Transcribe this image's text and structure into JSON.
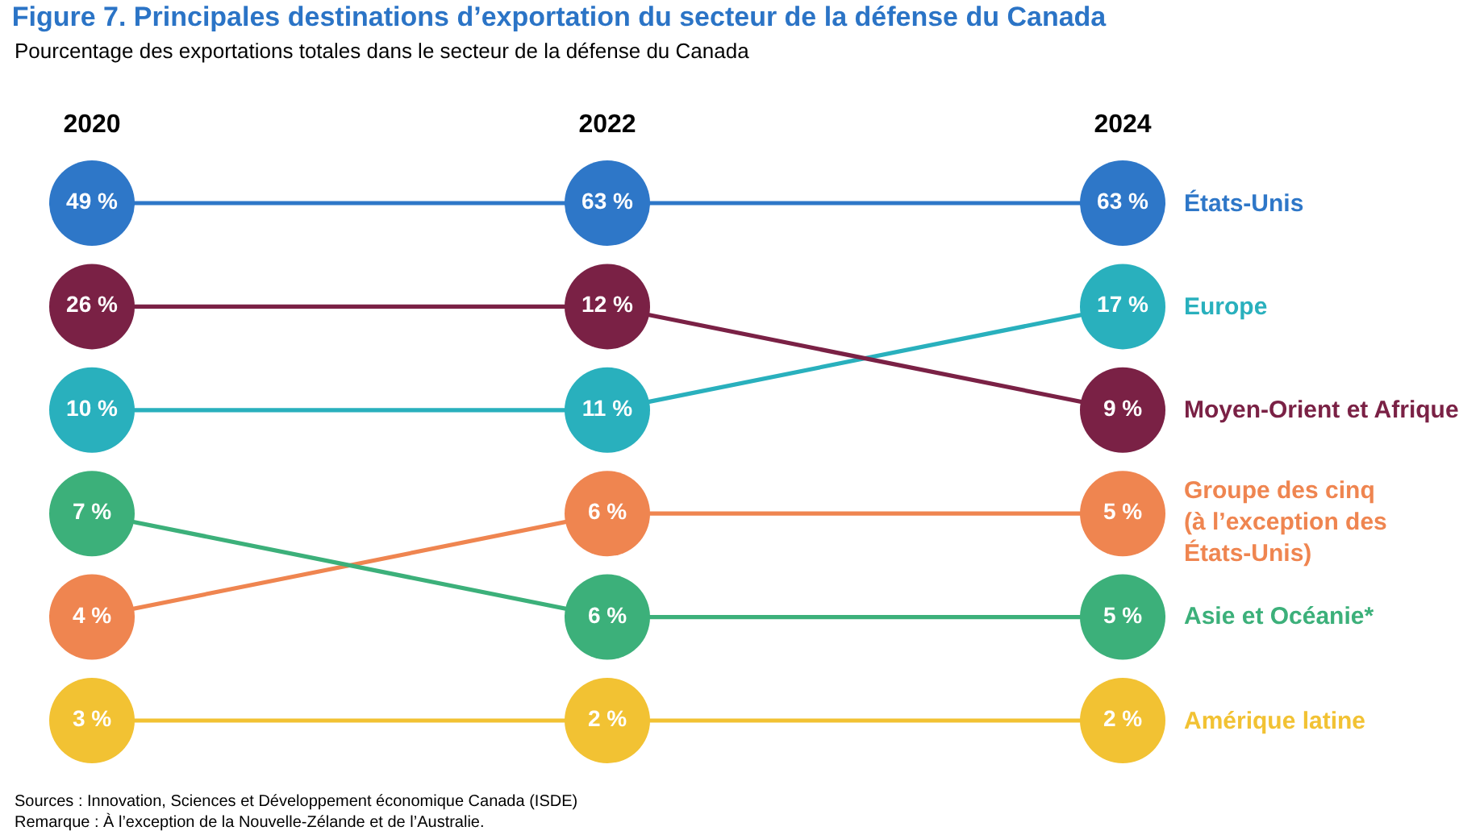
{
  "chart_data": {
    "type": "other",
    "title": "Figure 7. Principales destinations d’exportation du secteur de la défense du Canada",
    "subtitle": "Pourcentage des exportations totales dans le secteur de la défense du Canada",
    "categories": [
      "2020",
      "2022",
      "2024"
    ],
    "series": [
      {
        "name": "États-Unis",
        "color": "#2e77c8",
        "values": [
          49,
          63,
          63
        ],
        "value_labels": [
          "49 %",
          "63 %",
          "63 %"
        ]
      },
      {
        "name": "Europe",
        "color": "#29b0bd",
        "values": [
          10,
          11,
          17
        ],
        "value_labels": [
          "10 %",
          "11 %",
          "17 %"
        ]
      },
      {
        "name": "Moyen-Orient et Afrique",
        "color": "#7a2145",
        "values": [
          26,
          12,
          9
        ],
        "value_labels": [
          "26 %",
          "12 %",
          "9 %"
        ]
      },
      {
        "name": "Groupe des cinq (à l’exception des États-Unis)",
        "color": "#ef8550",
        "values": [
          4,
          6,
          5
        ],
        "value_labels": [
          "4 %",
          "6 %",
          "5 %"
        ]
      },
      {
        "name": "Asie et Océanie*",
        "color": "#3cb07a",
        "values": [
          7,
          6,
          5
        ],
        "value_labels": [
          "7 %",
          "6 %",
          "5 %"
        ]
      },
      {
        "name": "Amérique latine",
        "color": "#f2c233",
        "values": [
          3,
          2,
          2
        ],
        "value_labels": [
          "3 %",
          "2 %",
          "2 %"
        ]
      }
    ],
    "annotations": [
      "Sources : Innovation, Sciences et Développement économique Canada (ISDE)",
      "Remarque : À l’exception de la Nouvelle-Zélande et de l’Australie."
    ]
  }
}
